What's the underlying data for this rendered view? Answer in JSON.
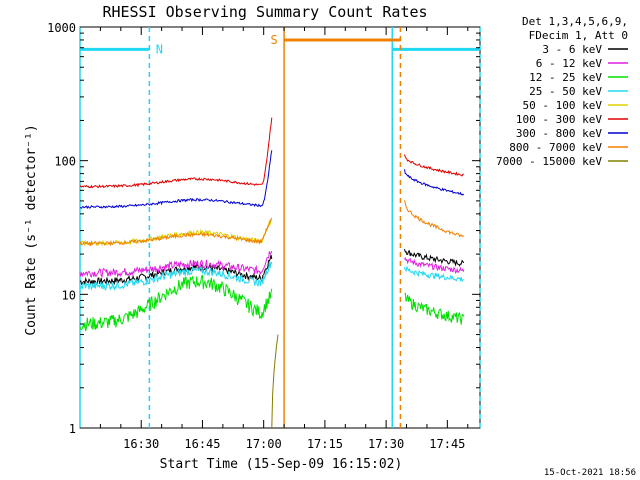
{
  "chart_data": {
    "type": "line",
    "title": "RHESSI Observing Summary Count Rates",
    "xlabel": "Start Time (15-Sep-09 16:15:02)",
    "ylabel": "Count Rate (s⁻¹ detector⁻¹)",
    "yscale": "log",
    "ylim": [
      1,
      1000
    ],
    "xlim_minutes": [
      0,
      98
    ],
    "x_ticks": [
      {
        "label": "16:30",
        "min": 15
      },
      {
        "label": "16:45",
        "min": 30
      },
      {
        "label": "17:00",
        "min": 45
      },
      {
        "label": "17:15",
        "min": 60
      },
      {
        "label": "17:30",
        "min": 75
      },
      {
        "label": "17:45",
        "min": 90
      }
    ],
    "y_ticks": [
      {
        "label": "1",
        "v": 1
      },
      {
        "label": "10",
        "v": 10
      },
      {
        "label": "100",
        "v": 100
      },
      {
        "label": "1000",
        "v": 1000
      }
    ],
    "legend_header": [
      "Det 1,3,4,5,6,9,",
      "FDecim 1, Att 0"
    ],
    "legend_position": "right",
    "series": [
      {
        "name": "3 - 6 keV",
        "color": "#000000",
        "segments": [
          {
            "x0": 0,
            "x1": 47,
            "base": 12.5,
            "bump": 3.5,
            "noise": 0.06
          },
          {
            "x0": 79.5,
            "x1": 94,
            "base": 22,
            "end": 17,
            "noise": 0.05
          }
        ]
      },
      {
        "name": "6 - 12 keV",
        "color": "#e020e0",
        "segments": [
          {
            "x0": 0,
            "x1": 47,
            "base": 14.5,
            "bump": 2.5,
            "noise": 0.07
          },
          {
            "x0": 79.5,
            "x1": 94,
            "base": 19,
            "end": 15,
            "noise": 0.05
          }
        ]
      },
      {
        "name": "12 - 25 keV",
        "color": "#00e000",
        "segments": [
          {
            "x0": 0,
            "x1": 47,
            "base": 6,
            "bump": 6.5,
            "noise": 0.12
          },
          {
            "x0": 79.5,
            "x1": 94,
            "base": 10,
            "end": 6.5,
            "noise": 0.1
          }
        ]
      },
      {
        "name": "25 - 50 keV",
        "color": "#20d8f0",
        "segments": [
          {
            "x0": 0,
            "x1": 47,
            "base": 11.5,
            "bump": 3.5,
            "noise": 0.07
          },
          {
            "x0": 79.5,
            "x1": 94,
            "base": 16,
            "end": 13,
            "noise": 0.05
          }
        ]
      },
      {
        "name": "50 - 100 keV",
        "color": "#e0d000",
        "segments": [
          {
            "x0": 0,
            "x1": 47,
            "base": 24,
            "bump": 5,
            "noise": 0.04
          }
        ]
      },
      {
        "name": "100 - 300 keV",
        "color": "#e00000",
        "segments": [
          {
            "x0": 0,
            "x1": 47,
            "base": 64,
            "bump": 9,
            "noise": 0.02,
            "flare": 210
          },
          {
            "x0": 79.5,
            "x1": 94,
            "base": 110,
            "end": 78,
            "noise": 0.02
          }
        ]
      },
      {
        "name": "300 - 800 keV",
        "color": "#0000d0",
        "segments": [
          {
            "x0": 0,
            "x1": 47,
            "base": 45,
            "bump": 6,
            "noise": 0.02,
            "flare": 120
          },
          {
            "x0": 79.5,
            "x1": 94,
            "base": 85,
            "end": 56,
            "noise": 0.02
          }
        ]
      },
      {
        "name": "800 - 7000 keV",
        "color": "#f08000",
        "segments": [
          {
            "x0": 0,
            "x1": 47,
            "base": 24,
            "bump": 4,
            "noise": 0.03
          },
          {
            "x0": 79.5,
            "x1": 94,
            "base": 50,
            "end": 27,
            "noise": 0.03
          }
        ]
      },
      {
        "name": "7000 - 15000 keV",
        "color": "#808000",
        "segments": [
          {
            "x0": 47,
            "x1": 48.5,
            "base": 1,
            "end": 5,
            "noise": 0
          }
        ]
      }
    ],
    "flags": [
      {
        "label": "N",
        "color": "#20d8f0",
        "y": 680,
        "ranges": [
          [
            0,
            17
          ],
          [
            76.5,
            98
          ]
        ],
        "edges": [
          0,
          17,
          76.5,
          98
        ],
        "edge_styles": [
          "solid",
          "dashed",
          "solid",
          "dashed"
        ]
      },
      {
        "label": "S",
        "color": "#f08000",
        "y": 800,
        "ranges": [
          [
            50,
            78.5
          ]
        ],
        "edges": [
          50,
          78.5
        ],
        "edge_styles": [
          "solid",
          "dashed"
        ]
      }
    ],
    "grid": false
  },
  "footer_timestamp": "15-Oct-2021 18:56"
}
